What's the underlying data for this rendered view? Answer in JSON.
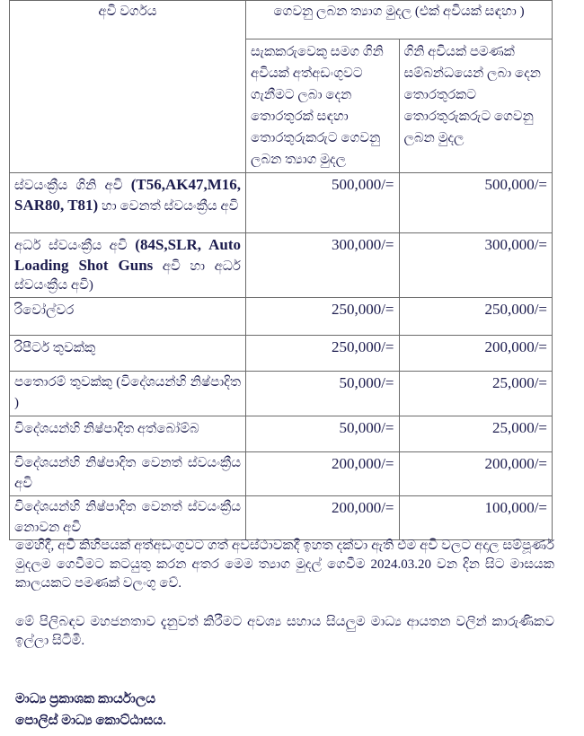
{
  "table": {
    "header": {
      "weapon_type": "අවි වර්ගය",
      "reward": "ගෙවනු ලබන ත්‍යාග මුදල (එක් අවියක් සඳහා )",
      "sub_with_suspect": "සැකකරුවෙකු සමග ගිනි අවියක් අත්අඩංගුවට ගැනීමට ලබා දෙන තොරතුරක් සඳහා තොරතුරුකරුට ගෙවනු ලබන ත්‍යාග මුදල",
      "sub_weapon_only": "ගිනි අවියක් පමණක් සම්බන්ධයෙන් ලබා දෙන තොරතුරකට තොරතුරුකරුට ගෙවනු ලබන මුදල"
    },
    "rows": [
      {
        "name_a": "ස්වයංක්‍රීය ගිනි අවි ",
        "name_latin": "(T56,AK47,M16, SAR80, T81)",
        "name_b": " හා වෙනත් ස්වයංක්‍රීය අවි",
        "with_suspect": "500,000/=",
        "weapon_only": "500,000/="
      },
      {
        "name_a": "අර්ධ ස්වයංක්‍රීය අවි ",
        "name_latin": "(84S,SLR, Auto Loading Shot Guns",
        "name_b": " අවි හා අර්ධ ස්වයංක්‍රීය අවි)",
        "with_suspect": "300,000/=",
        "weapon_only": "300,000/="
      },
      {
        "name_a": "රිවෝල්වර",
        "name_latin": "",
        "name_b": "",
        "with_suspect": "250,000/=",
        "weapon_only": "250,000/="
      },
      {
        "name_a": "රිපීටර් තුවක්කු",
        "name_latin": "",
        "name_b": "",
        "with_suspect": "250,000/=",
        "weapon_only": "200,000/="
      },
      {
        "name_a": "පතොරම් තුවක්කු (විදේශයන්හි නිෂ්පාදිත )",
        "name_latin": "",
        "name_b": "",
        "with_suspect": "50,000/=",
        "weapon_only": "25,000/="
      },
      {
        "name_a": "විදේශයන්හි නිෂ්පාදිත අත්බෝම්බ",
        "name_latin": "",
        "name_b": "",
        "with_suspect": "50,000/=",
        "weapon_only": "25,000/="
      },
      {
        "name_a": "විදේශයන්හි නිෂ්පාදිත වෙනත් ස්වයංක්‍රීය අවි",
        "name_latin": "",
        "name_b": "",
        "with_suspect": "200,000/=",
        "weapon_only": "200,000/="
      },
      {
        "name_a": "විදේශයන්හි නිෂ්පාදිත වෙනත් ස්වයංක්‍රීය නොවන අවි",
        "name_latin": "",
        "name_b": "",
        "with_suspect": "200,000/=",
        "weapon_only": "100,000/="
      }
    ]
  },
  "paragraphs": [
    "මෙහිදී, අවි කිහිපයක් අත්අඩංගුවට ගත් අවස්ථාවකදී ඉහත දක්වා ඇති එම අවි වලට අදාල සම්පූර්ණ මුදලම ගෙවීමට කටයුතු කරන අතර මෙම ත්‍යාග මුදල් ගෙවීම 2024.03.20 වන දින සිට මාසයක කාලයකට පමණක් වලංගු වේ.",
    "මේ පිලිබඳව මහජනතාව දැනුවත් කිරීමට අවශ්‍ය සහාය සියලුම මාධ්‍ය ආයතන වලින් කාරුණිකව ඉල්ලා සිටිමි."
  ],
  "signature": {
    "line1": "මාධ්‍ය ප්‍රකාශක කාර්යාලය",
    "line2": "පොලිස් මාධ්‍ය කොට්ඨාසය."
  }
}
